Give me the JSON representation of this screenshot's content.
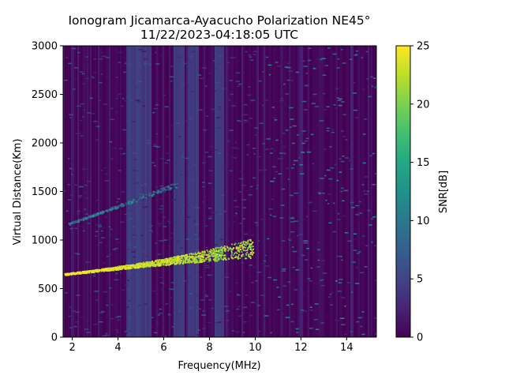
{
  "chart_data": {
    "type": "heatmap",
    "title": "Ionogram Jicamarca-Ayacucho Polarization NE45°",
    "subtitle": "11/22/2023-04:18:05 UTC",
    "xlabel": "Frequency(MHz)",
    "ylabel": "Virtual Distance(Km)",
    "colorbar_label": "SNR[dB]",
    "colormap": "viridis",
    "xlim": [
      1.6,
      15.3
    ],
    "ylim": [
      0,
      3000
    ],
    "clim": [
      0,
      25
    ],
    "x_ticks": [
      "2",
      "4",
      "6",
      "8",
      "10",
      "12",
      "14"
    ],
    "x_tick_values": [
      2,
      4,
      6,
      8,
      10,
      12,
      14
    ],
    "y_ticks": [
      "0",
      "500",
      "1000",
      "1500",
      "2000",
      "2500",
      "3000"
    ],
    "y_tick_values": [
      0,
      500,
      1000,
      1500,
      2000,
      2500,
      3000
    ],
    "colorbar_ticks": [
      "0",
      "5",
      "10",
      "15",
      "20",
      "25"
    ],
    "colorbar_tick_values": [
      0,
      5,
      10,
      15,
      20,
      25
    ],
    "traces": [
      {
        "freq_start": 1.65,
        "freq_end": 9.9,
        "dist_start": 645,
        "dist_end": 860,
        "dist_spread_end": 180,
        "snr": 25
      },
      {
        "freq_start": 1.8,
        "freq_end": 6.6,
        "dist_start": 1160,
        "dist_end": 1560,
        "snr": 16
      }
    ],
    "cutoff_freq_mhz": 10.3,
    "interference_bands_mhz": [
      [
        4.3,
        5.4
      ],
      [
        6.4,
        6.9
      ],
      [
        7.0,
        7.5
      ],
      [
        8.2,
        8.6
      ]
    ],
    "grid": false
  }
}
